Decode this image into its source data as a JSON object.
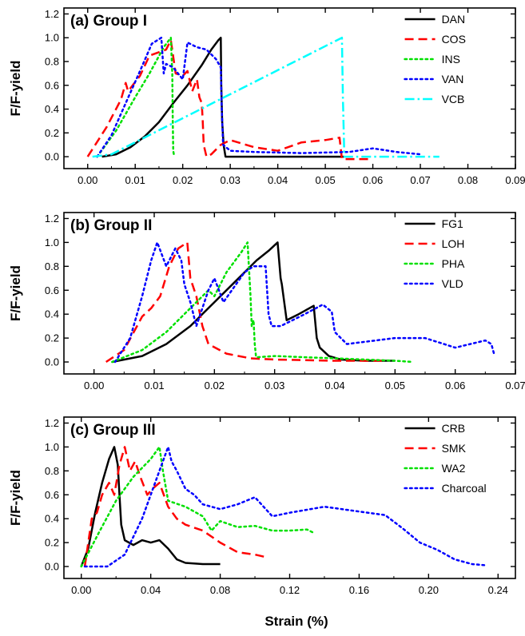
{
  "figure": {
    "x_axis_title": "Strain (%)"
  },
  "chart_data": [
    {
      "type": "line",
      "panel_title": "(a) Group I",
      "ylabel": "F/F-yield",
      "xlim": [
        -0.005,
        0.09
      ],
      "ylim": [
        -0.1,
        1.25
      ],
      "x_ticks": [
        "0.00",
        "0.01",
        "0.02",
        "0.03",
        "0.04",
        "0.05",
        "0.06",
        "0.07",
        "0.08",
        "0.09"
      ],
      "x_tick_values": [
        0,
        0.01,
        0.02,
        0.03,
        0.04,
        0.05,
        0.06,
        0.07,
        0.08,
        0.09
      ],
      "y_ticks": [
        "0.0",
        "0.2",
        "0.4",
        "0.6",
        "0.8",
        "1.0",
        "1.2"
      ],
      "y_tick_values": [
        0,
        0.2,
        0.4,
        0.6,
        0.8,
        1.0,
        1.2
      ],
      "legend_position": "top-right",
      "series": [
        {
          "name": "DAN",
          "color": "#000000",
          "dash": "solid",
          "x": [
            0.003,
            0.006,
            0.009,
            0.012,
            0.015,
            0.018,
            0.021,
            0.024,
            0.026,
            0.0275,
            0.028,
            0.0281,
            0.0283,
            0.0286,
            0.029,
            0.035,
            0.045,
            0.052,
            0.054
          ],
          "y": [
            0,
            0.02,
            0.08,
            0.17,
            0.29,
            0.45,
            0.6,
            0.77,
            0.9,
            0.98,
            1.0,
            0.6,
            0.3,
            0.1,
            0.0,
            0.0,
            0.0,
            0.0,
            0.0
          ]
        },
        {
          "name": "COS",
          "color": "#ff0000",
          "dash": "dashed",
          "x": [
            0.0,
            0.004,
            0.007,
            0.008,
            0.0085,
            0.011,
            0.013,
            0.0165,
            0.0175,
            0.0185,
            0.02,
            0.021,
            0.022,
            0.023,
            0.0235,
            0.024,
            0.0242,
            0.0244,
            0.025,
            0.026,
            0.028,
            0.03,
            0.035,
            0.04,
            0.045,
            0.05,
            0.053,
            0.0535,
            0.055,
            0.059
          ],
          "y": [
            0.0,
            0.25,
            0.48,
            0.62,
            0.55,
            0.68,
            0.85,
            0.9,
            0.98,
            0.7,
            0.68,
            0.72,
            0.55,
            0.65,
            0.5,
            0.45,
            0.3,
            0.1,
            0.0,
            0.02,
            0.1,
            0.14,
            0.08,
            0.05,
            0.12,
            0.14,
            0.16,
            -0.02,
            -0.02,
            -0.02
          ]
        },
        {
          "name": "INS",
          "color": "#00e000",
          "dash": "dotted",
          "x": [
            0.002,
            0.006,
            0.01,
            0.013,
            0.016,
            0.0175,
            0.0178,
            0.0179,
            0.018,
            0.0182
          ],
          "y": [
            0.0,
            0.22,
            0.5,
            0.7,
            0.92,
            1.0,
            0.7,
            0.3,
            0.05,
            0.0
          ]
        },
        {
          "name": "VAN",
          "color": "#0000ff",
          "dash": "dotted",
          "x": [
            0.002,
            0.005,
            0.008,
            0.011,
            0.0135,
            0.0155,
            0.016,
            0.0165,
            0.018,
            0.02,
            0.021,
            0.023,
            0.025,
            0.027,
            0.028,
            0.0282,
            0.0285,
            0.03,
            0.035,
            0.045,
            0.055,
            0.06,
            0.065,
            0.07
          ],
          "y": [
            0.0,
            0.18,
            0.45,
            0.72,
            0.95,
            1.0,
            0.7,
            0.78,
            0.75,
            0.65,
            0.96,
            0.92,
            0.9,
            0.82,
            0.75,
            0.4,
            0.1,
            0.05,
            0.04,
            0.03,
            0.04,
            0.07,
            0.04,
            0.02
          ]
        },
        {
          "name": "VCB",
          "color": "#00ffff",
          "dash": "dashdot",
          "x": [
            0.001,
            0.005,
            0.0535,
            0.0537,
            0.054,
            0.074
          ],
          "y": [
            0.0,
            0.02,
            1.0,
            0.5,
            0.0,
            0.0
          ]
        }
      ]
    },
    {
      "type": "line",
      "panel_title": "(b) Group II",
      "ylabel": "F/F-yield",
      "xlim": [
        -0.005,
        0.07
      ],
      "ylim": [
        -0.1,
        1.25
      ],
      "x_ticks": [
        "0.00",
        "0.01",
        "0.02",
        "0.03",
        "0.04",
        "0.05",
        "0.06",
        "0.07"
      ],
      "x_tick_values": [
        0,
        0.01,
        0.02,
        0.03,
        0.04,
        0.05,
        0.06,
        0.07
      ],
      "y_ticks": [
        "0.0",
        "0.2",
        "0.4",
        "0.6",
        "0.8",
        "1.0",
        "1.2"
      ],
      "y_tick_values": [
        0,
        0.2,
        0.4,
        0.6,
        0.8,
        1.0,
        1.2
      ],
      "legend_position": "top-right",
      "series": [
        {
          "name": "FG1",
          "color": "#000000",
          "dash": "solid",
          "x": [
            0.003,
            0.008,
            0.012,
            0.016,
            0.02,
            0.024,
            0.027,
            0.029,
            0.0305,
            0.031,
            0.0312,
            0.032,
            0.034,
            0.0365,
            0.037,
            0.0375,
            0.039,
            0.041,
            0.045,
            0.05
          ],
          "y": [
            0.0,
            0.05,
            0.15,
            0.3,
            0.5,
            0.7,
            0.85,
            0.93,
            1.0,
            0.7,
            0.65,
            0.35,
            0.4,
            0.47,
            0.2,
            0.12,
            0.05,
            0.02,
            0.01,
            0.01
          ]
        },
        {
          "name": "LOH",
          "color": "#ff0000",
          "dash": "dashed",
          "x": [
            0.002,
            0.005,
            0.008,
            0.0095,
            0.011,
            0.0125,
            0.014,
            0.0155,
            0.016,
            0.017,
            0.018,
            0.019,
            0.022,
            0.026,
            0.03,
            0.04,
            0.048
          ],
          "y": [
            0.0,
            0.1,
            0.38,
            0.45,
            0.55,
            0.8,
            0.95,
            1.0,
            0.7,
            0.55,
            0.3,
            0.15,
            0.07,
            0.03,
            0.02,
            0.01,
            0.01
          ]
        },
        {
          "name": "PHA",
          "color": "#00e000",
          "dash": "dotted",
          "x": [
            0.003,
            0.008,
            0.012,
            0.016,
            0.019,
            0.02,
            0.022,
            0.0245,
            0.0255,
            0.026,
            0.0262,
            0.0265,
            0.0267,
            0.0269,
            0.027,
            0.03,
            0.035,
            0.04,
            0.045,
            0.05,
            0.053
          ],
          "y": [
            0.0,
            0.1,
            0.25,
            0.45,
            0.6,
            0.55,
            0.75,
            0.92,
            1.0,
            0.55,
            0.3,
            0.35,
            0.15,
            0.05,
            0.04,
            0.05,
            0.04,
            0.03,
            0.02,
            0.01,
            0.0
          ]
        },
        {
          "name": "VLD",
          "color": "#0000ff",
          "dash": "dotted",
          "x": [
            0.0035,
            0.006,
            0.008,
            0.0095,
            0.0105,
            0.012,
            0.0135,
            0.0145,
            0.015,
            0.016,
            0.017,
            0.019,
            0.02,
            0.0215,
            0.025,
            0.0265,
            0.0275,
            0.0285,
            0.029,
            0.0295,
            0.031,
            0.035,
            0.038,
            0.0395,
            0.04,
            0.042,
            0.05,
            0.055,
            0.06,
            0.065,
            0.066,
            0.0665
          ],
          "y": [
            0.0,
            0.2,
            0.55,
            0.85,
            1.0,
            0.8,
            0.95,
            0.85,
            0.65,
            0.5,
            0.3,
            0.6,
            0.7,
            0.5,
            0.75,
            0.8,
            0.8,
            0.8,
            0.4,
            0.3,
            0.3,
            0.4,
            0.48,
            0.42,
            0.25,
            0.15,
            0.2,
            0.2,
            0.12,
            0.18,
            0.15,
            0.06
          ]
        }
      ]
    },
    {
      "type": "line",
      "panel_title": "(c) Group III",
      "ylabel": "F/F-yield",
      "xlim": [
        -0.01,
        0.25
      ],
      "ylim": [
        -0.1,
        1.25
      ],
      "x_ticks": [
        "0.00",
        "0.04",
        "0.08",
        "0.12",
        "0.16",
        "0.20",
        "0.24"
      ],
      "x_tick_values": [
        0,
        0.04,
        0.08,
        0.12,
        0.16,
        0.2,
        0.24
      ],
      "y_ticks": [
        "0.0",
        "0.2",
        "0.4",
        "0.6",
        "0.8",
        "1.0",
        "1.2"
      ],
      "y_tick_values": [
        0,
        0.2,
        0.4,
        0.6,
        0.8,
        1.0,
        1.2
      ],
      "legend_position": "top-right",
      "series": [
        {
          "name": "CRB",
          "color": "#000000",
          "dash": "solid",
          "x": [
            0.0,
            0.004,
            0.008,
            0.012,
            0.016,
            0.019,
            0.021,
            0.022,
            0.023,
            0.025,
            0.03,
            0.035,
            0.04,
            0.045,
            0.05,
            0.055,
            0.06,
            0.07,
            0.08
          ],
          "y": [
            0.0,
            0.15,
            0.45,
            0.7,
            0.9,
            1.0,
            0.85,
            0.6,
            0.35,
            0.22,
            0.18,
            0.22,
            0.2,
            0.22,
            0.15,
            0.06,
            0.03,
            0.02,
            0.02
          ]
        },
        {
          "name": "SMK",
          "color": "#ff0000",
          "dash": "dashed",
          "x": [
            0.002,
            0.006,
            0.009,
            0.012,
            0.016,
            0.019,
            0.022,
            0.025,
            0.028,
            0.031,
            0.034,
            0.038,
            0.041,
            0.045,
            0.05,
            0.055,
            0.06,
            0.07,
            0.08,
            0.09,
            0.1,
            0.106
          ],
          "y": [
            0.0,
            0.4,
            0.45,
            0.6,
            0.7,
            0.6,
            0.85,
            1.0,
            0.8,
            0.88,
            0.75,
            0.6,
            0.65,
            0.7,
            0.5,
            0.4,
            0.35,
            0.3,
            0.2,
            0.12,
            0.1,
            0.08
          ]
        },
        {
          "name": "WA2",
          "color": "#00e000",
          "dash": "dotted",
          "x": [
            0.0,
            0.01,
            0.02,
            0.03,
            0.04,
            0.045,
            0.047,
            0.05,
            0.06,
            0.07,
            0.075,
            0.08,
            0.09,
            0.1,
            0.11,
            0.12,
            0.13,
            0.134
          ],
          "y": [
            0.0,
            0.28,
            0.55,
            0.75,
            0.9,
            1.0,
            0.8,
            0.55,
            0.5,
            0.42,
            0.3,
            0.38,
            0.33,
            0.34,
            0.3,
            0.3,
            0.31,
            0.28
          ]
        },
        {
          "name": "Charcoal",
          "color": "#0000ff",
          "dash": "dotted",
          "x": [
            0.002,
            0.015,
            0.025,
            0.035,
            0.045,
            0.05,
            0.052,
            0.055,
            0.06,
            0.065,
            0.07,
            0.08,
            0.09,
            0.1,
            0.11,
            0.12,
            0.14,
            0.16,
            0.175,
            0.185,
            0.195,
            0.205,
            0.215,
            0.225,
            0.233
          ],
          "y": [
            0.0,
            0.0,
            0.1,
            0.4,
            0.8,
            1.0,
            0.88,
            0.8,
            0.65,
            0.6,
            0.52,
            0.48,
            0.52,
            0.58,
            0.42,
            0.45,
            0.5,
            0.46,
            0.43,
            0.32,
            0.2,
            0.14,
            0.06,
            0.02,
            0.01
          ]
        }
      ]
    }
  ]
}
